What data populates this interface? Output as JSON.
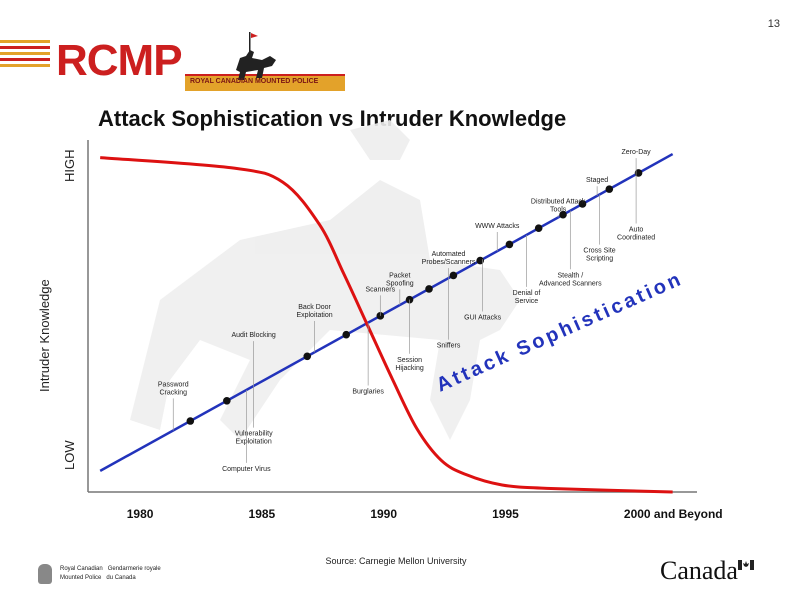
{
  "page_number": "13",
  "header": {
    "logo_text": "RCMP",
    "logo_subtitle": "ROYAL CANADIAN MOUNTED POLICE"
  },
  "title": "Attack Sophistication vs Intruder Knowledge",
  "source": "Source: Carnegie Mellon University",
  "footer": {
    "left_line1": "Royal Canadian   Gendarmerie royale",
    "left_line2": "Mounted Police   du Canada",
    "wordmark": "Canada"
  },
  "colors": {
    "sophistication_line": "#2233bb",
    "knowledge_curve": "#dd1111",
    "logo_red": "#cc1f1f",
    "logo_gold": "#e3a22a"
  },
  "chart_data": {
    "type": "line",
    "title": "Attack Sophistication vs Intruder Knowledge",
    "xlabel": "",
    "ylabel": "Intruder Knowledge",
    "y_axis_labels": {
      "high": "HIGH",
      "low": "LOW"
    },
    "x_ticks": [
      "1980",
      "1985",
      "1990",
      "1995",
      "2000 and Beyond"
    ],
    "xlim": [
      1978,
      2003
    ],
    "ylim": [
      0,
      1
    ],
    "grid": false,
    "series": [
      {
        "name": "Attack Sophistication",
        "x": [
          1978.5,
          2002.0
        ],
        "y": [
          0.06,
          0.96
        ]
      },
      {
        "name": "Intruder Knowledge",
        "x": [
          1978.5,
          1984.0,
          1986.0,
          1987.5,
          1988.5,
          1989.5,
          1990.5,
          1991.5,
          1992.5,
          1993.5,
          1995.0,
          1997.0,
          2002.0
        ],
        "y": [
          0.95,
          0.92,
          0.88,
          0.76,
          0.62,
          0.47,
          0.32,
          0.18,
          0.09,
          0.05,
          0.02,
          0.01,
          0.0
        ]
      }
    ],
    "series_text_label": "Attack Sophistication",
    "annotations": [
      {
        "text": "Zero-Day",
        "x": 2000.5,
        "y": 0.96
      },
      {
        "text": "Staged",
        "x": 1998.9,
        "y": 0.88
      },
      {
        "text": "Distributed Attack Tools",
        "x": 1997.3,
        "y": 0.82
      },
      {
        "text": "Auto Coordinated",
        "x": 2000.5,
        "y": 0.74
      },
      {
        "text": "WWW Attacks",
        "x": 1994.8,
        "y": 0.75
      },
      {
        "text": "Cross Site Scripting",
        "x": 1999.0,
        "y": 0.68
      },
      {
        "text": "Automated Probes/Scanners",
        "x": 1992.8,
        "y": 0.67
      },
      {
        "text": "Stealth / Advanced Scanners",
        "x": 1997.8,
        "y": 0.61
      },
      {
        "text": "Packet Spoofing",
        "x": 1990.8,
        "y": 0.61
      },
      {
        "text": "Denial of Service",
        "x": 1996.0,
        "y": 0.56
      },
      {
        "text": "Scanners",
        "x": 1990.0,
        "y": 0.57
      },
      {
        "text": "Back Door Exploitation",
        "x": 1987.3,
        "y": 0.52
      },
      {
        "text": "GUI Attacks",
        "x": 1994.2,
        "y": 0.49
      },
      {
        "text": "Audit Blocking",
        "x": 1984.8,
        "y": 0.44
      },
      {
        "text": "Sniffers",
        "x": 1992.8,
        "y": 0.41
      },
      {
        "text": "Session Hijacking",
        "x": 1991.2,
        "y": 0.37
      },
      {
        "text": "Password Cracking",
        "x": 1981.5,
        "y": 0.3
      },
      {
        "text": "Burglaries",
        "x": 1989.5,
        "y": 0.28
      },
      {
        "text": "Vulnerability Exploitation",
        "x": 1984.8,
        "y": 0.16
      },
      {
        "text": "Computer Virus",
        "x": 1984.5,
        "y": 0.06
      }
    ]
  }
}
